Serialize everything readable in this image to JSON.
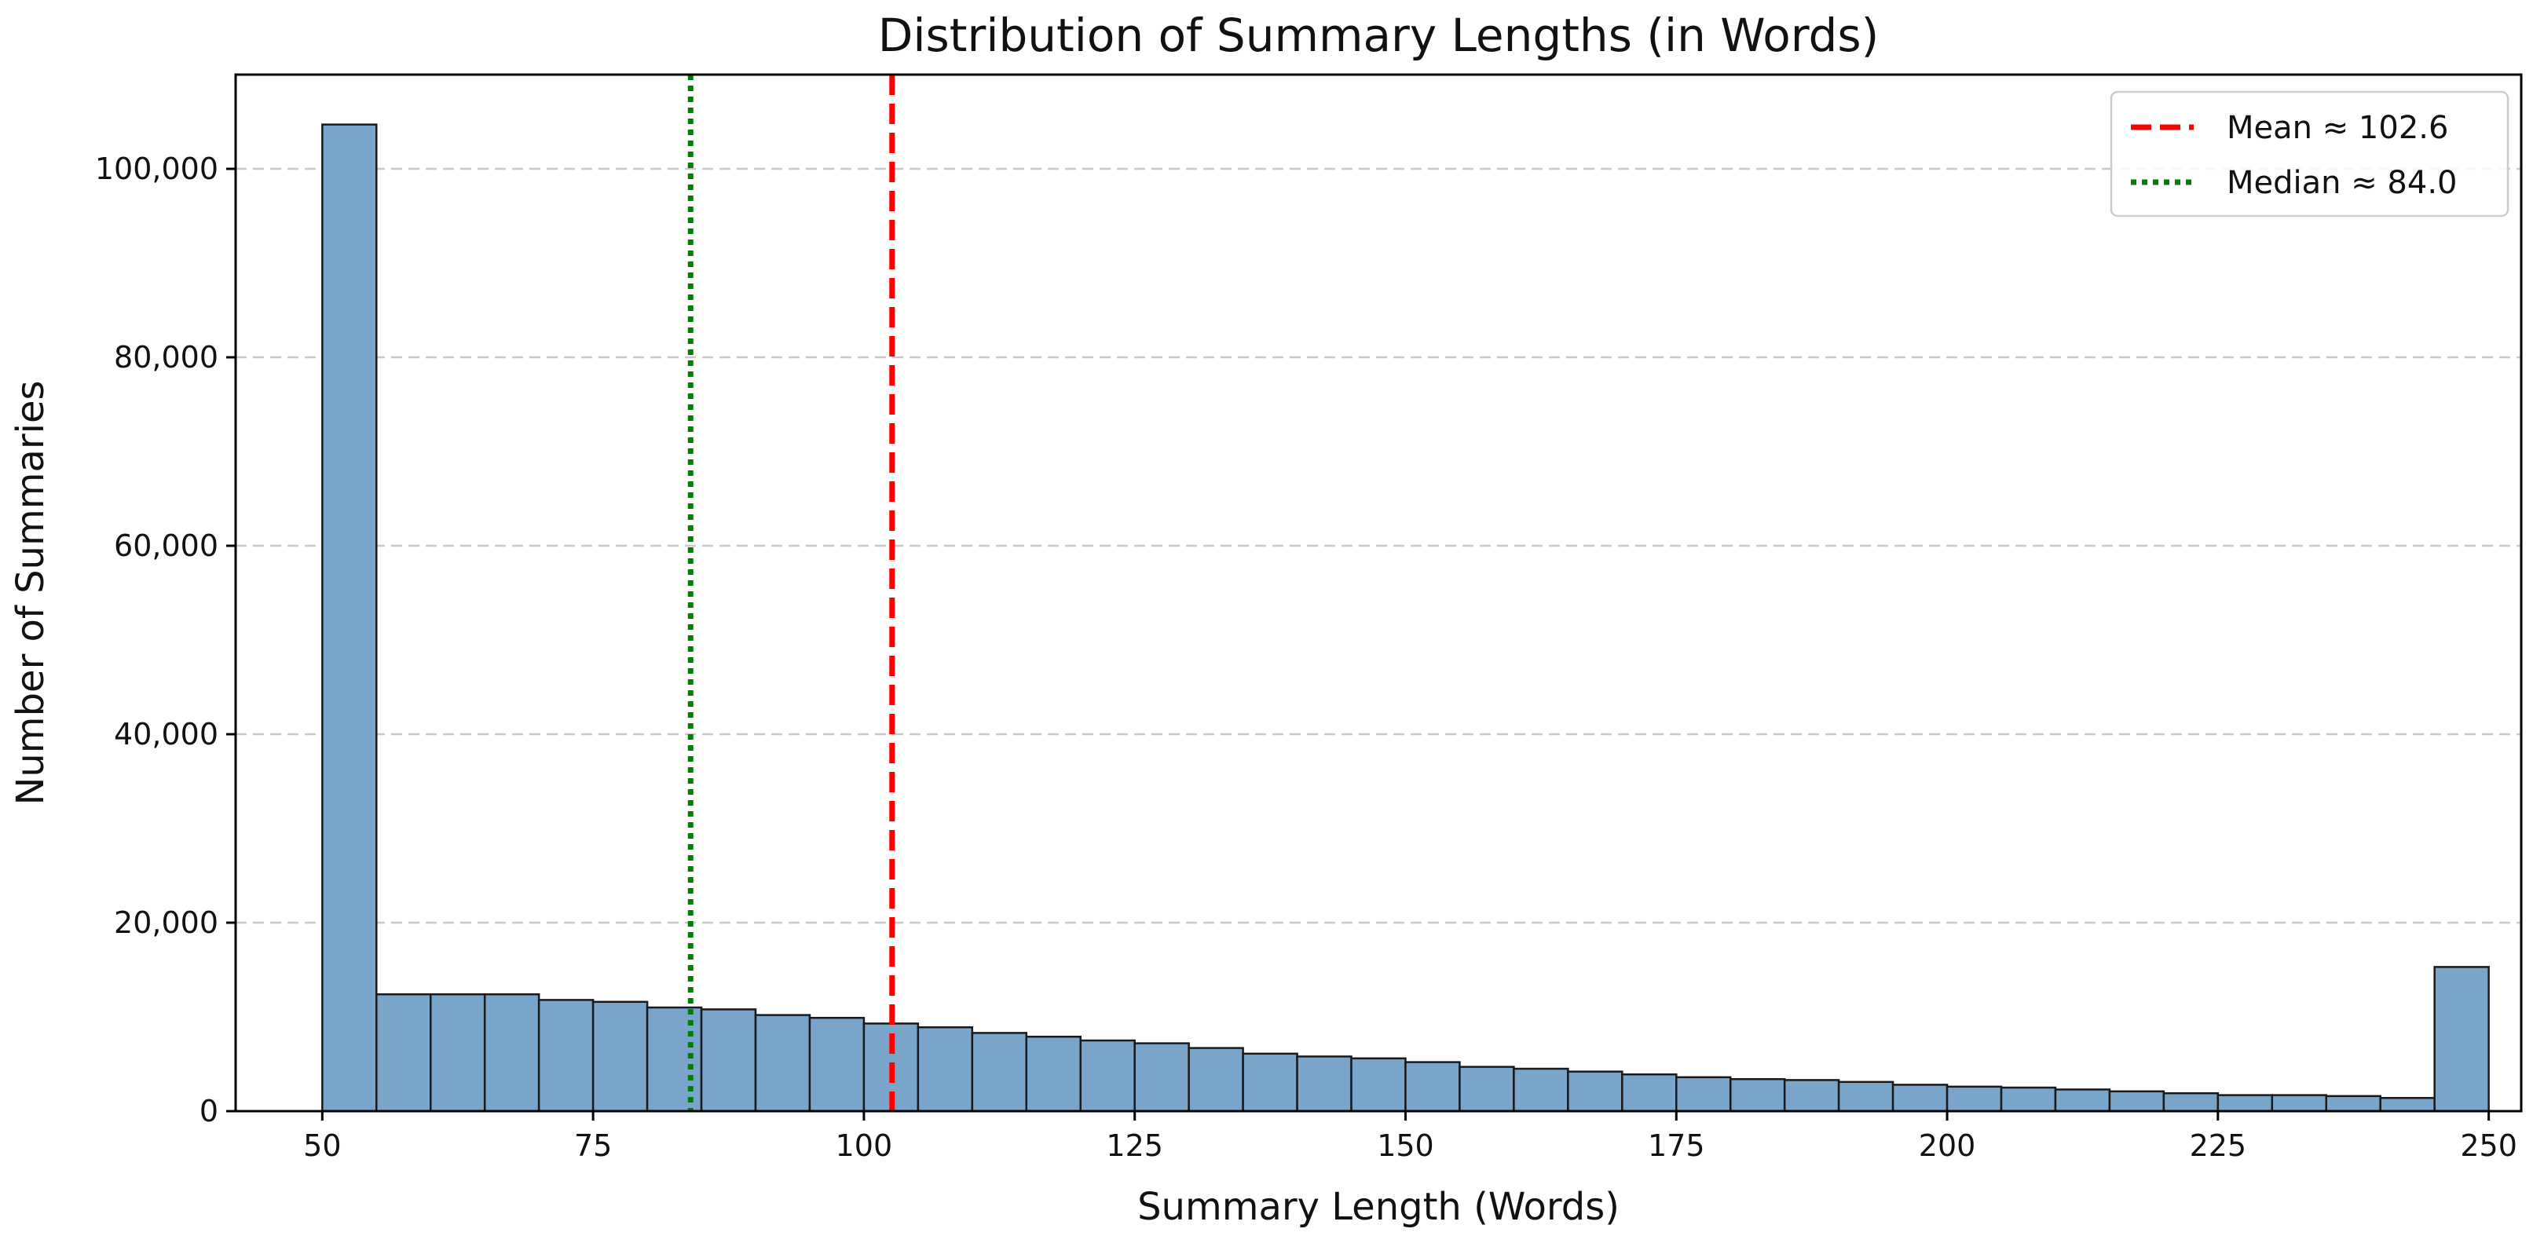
{
  "chart_data": {
    "type": "bar",
    "title": "Distribution of Summary Lengths (in Words)",
    "xlabel": "Summary Length (Words)",
    "ylabel": "Number of Summaries",
    "xlim": [
      42,
      253
    ],
    "ylim": [
      0,
      110000
    ],
    "x_ticks": [
      50,
      75,
      100,
      125,
      150,
      175,
      200,
      225,
      250
    ],
    "y_ticks": [
      0,
      20000,
      40000,
      60000,
      80000,
      100000
    ],
    "x_tick_labels": [
      "50",
      "75",
      "100",
      "125",
      "150",
      "175",
      "200",
      "225",
      "250"
    ],
    "y_tick_labels": [
      "0",
      "20,000",
      "40,000",
      "60,000",
      "80,000",
      "100,000"
    ],
    "grid": "y-dashed",
    "bin_start": 50,
    "bin_width": 5,
    "values": [
      104700,
      12400,
      12400,
      12400,
      11800,
      11600,
      11000,
      10800,
      10200,
      9900,
      9300,
      8900,
      8300,
      7900,
      7500,
      7200,
      6700,
      6100,
      5800,
      5600,
      5200,
      4700,
      4500,
      4200,
      3900,
      3600,
      3400,
      3300,
      3100,
      2800,
      2600,
      2500,
      2300,
      2100,
      1900,
      1700,
      1700,
      1600,
      1400,
      15300
    ],
    "bar_color": "#7aa5cb",
    "bar_edge_color": "#1a1a1a",
    "reference_lines": [
      {
        "label": "Mean ≈ 102.6",
        "x": 102.6,
        "color": "#ff0000",
        "style": "dashed"
      },
      {
        "label": "Median ≈ 84.0",
        "x": 84.0,
        "color": "#008000",
        "style": "dotted"
      }
    ],
    "legend_position": "top-right"
  }
}
